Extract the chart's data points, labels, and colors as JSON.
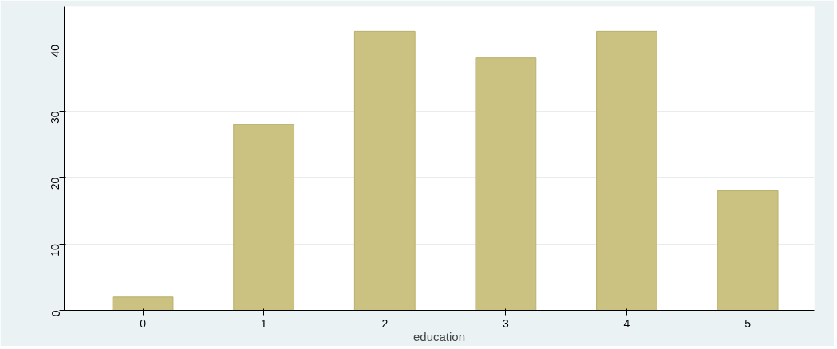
{
  "chart_data": {
    "type": "bar",
    "xlabel": "education",
    "categories": [
      "0",
      "1",
      "2",
      "3",
      "4",
      "5"
    ],
    "values": [
      2,
      28,
      42,
      38,
      42,
      18
    ],
    "color": "#cbc281",
    "ylim": [
      0,
      45.7
    ],
    "yticks": [
      0,
      10,
      20,
      30,
      40
    ],
    "grid": "y"
  }
}
